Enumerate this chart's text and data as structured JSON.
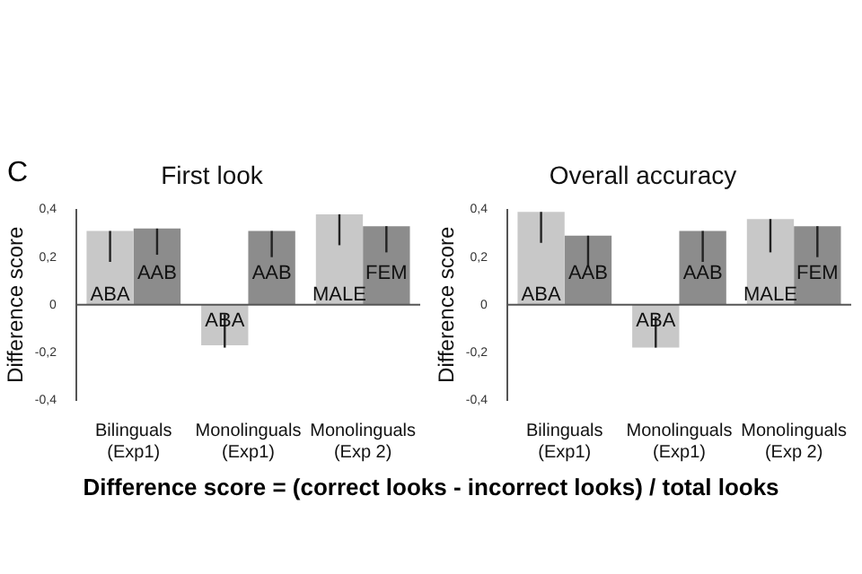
{
  "chart_data": [
    {
      "type": "bar",
      "title": "First look",
      "ylabel": "Difference score",
      "categories": [
        "Bilinguals (Exp1)",
        "Monolinguals (Exp1)",
        "Monolinguals (Exp 2)"
      ],
      "series": [
        {
          "color": "#c8c8c8",
          "values": [
            0.31,
            -0.17,
            0.38
          ],
          "errors": [
            [
              0.18,
              0.31
            ],
            [
              -0.18,
              -0.04
            ],
            [
              0.25,
              0.38
            ]
          ]
        },
        {
          "color": "#8c8c8c",
          "values": [
            0.32,
            0.31,
            0.33
          ],
          "errors": [
            [
              0.21,
              0.32
            ],
            [
              0.2,
              0.31
            ],
            [
              0.22,
              0.33
            ]
          ]
        }
      ],
      "ylim": [
        -0.4,
        0.4
      ],
      "yticks": [
        {
          "value": -0.4,
          "label": "-0,4"
        },
        {
          "value": -0.2,
          "label": "-0,2"
        },
        0,
        {
          "value": 0.2,
          "label": "0,2"
        },
        {
          "value": 0.4,
          "label": "0,4"
        }
      ],
      "legend": false,
      "annotations": [
        "C",
        {
          "text": "ABA",
          "x": "Bilinguals (Exp1)",
          "y": 0.04
        },
        {
          "text": "AAB",
          "x": "Bilinguals (Exp1)",
          "y": 0.13
        },
        {
          "text": "ABA",
          "x": "Monolinguals (Exp1)",
          "y": -0.07
        },
        {
          "text": "AAB",
          "x": "Monolinguals (Exp1)",
          "y": 0.13
        },
        {
          "text": "MALE",
          "x": "Monolinguals (Exp 2)",
          "y": 0.04
        },
        {
          "text": "FEM",
          "x": "Monolinguals (Exp 2)",
          "y": 0.13
        }
      ]
    },
    {
      "type": "bar",
      "title": "Overall accuracy",
      "ylabel": "Difference score",
      "categories": [
        "Bilinguals (Exp1)",
        "Monolinguals (Exp1)",
        "Monolinguals (Exp 2)"
      ],
      "series": [
        {
          "color": "#c8c8c8",
          "values": [
            0.39,
            -0.18,
            0.36
          ],
          "errors": [
            [
              0.26,
              0.39
            ],
            [
              -0.18,
              -0.05
            ],
            [
              0.22,
              0.36
            ]
          ]
        },
        {
          "color": "#8c8c8c",
          "values": [
            0.29,
            0.31,
            0.33
          ],
          "errors": [
            [
              0.16,
              0.29
            ],
            [
              0.18,
              0.31
            ],
            [
              0.2,
              0.33
            ]
          ]
        }
      ],
      "ylim": [
        -0.4,
        0.4
      ],
      "yticks": [
        {
          "value": -0.4,
          "label": "-0,4"
        },
        {
          "value": -0.2,
          "label": "-0,2"
        },
        0,
        {
          "value": 0.2,
          "label": "0,2"
        },
        {
          "value": 0.4,
          "label": "0,4"
        }
      ],
      "legend": false,
      "annotations": [
        "Difference score = (correct looks - incorrect looks) / total looks",
        {
          "text": "ABA",
          "x": "Bilinguals (Exp1)",
          "y": 0.04
        },
        {
          "text": "AAB",
          "x": "Bilinguals (Exp1)",
          "y": 0.13
        },
        {
          "text": "ABA",
          "x": "Monolinguals (Exp1)",
          "y": -0.07
        },
        {
          "text": "AAB",
          "x": "Monolinguals (Exp1)",
          "y": 0.13
        },
        {
          "text": "MALE",
          "x": "Monolinguals (Exp 2)",
          "y": 0.04
        },
        {
          "text": "FEM",
          "x": "Monolinguals (Exp 2)",
          "y": 0.13
        }
      ]
    }
  ]
}
